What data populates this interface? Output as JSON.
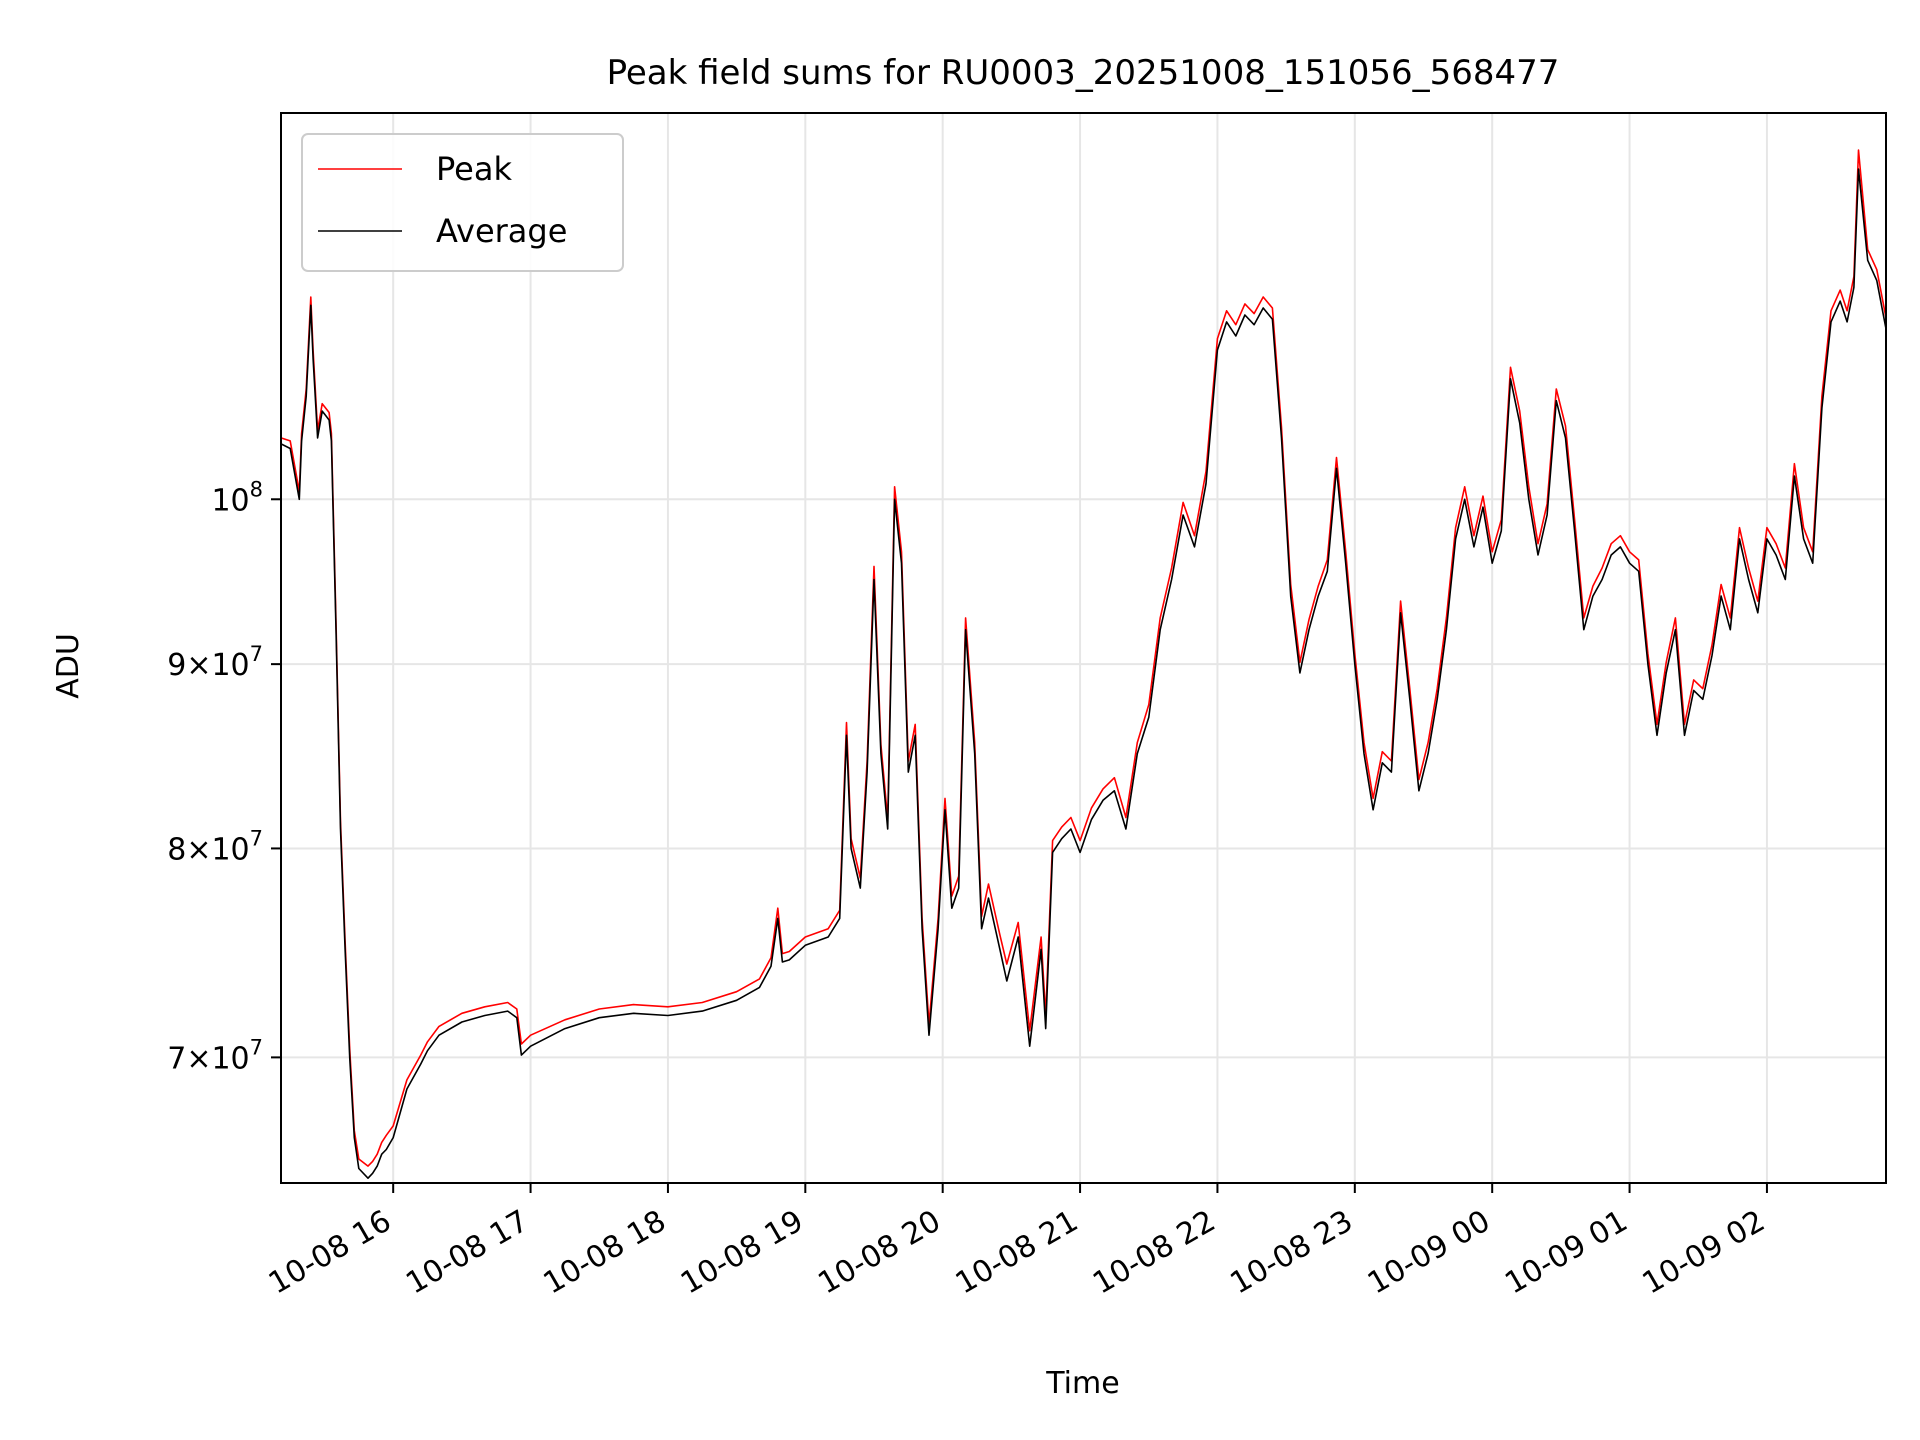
{
  "chart_data": {
    "type": "line",
    "title": "Peak field sums for RU0003_20251008_151056_568477",
    "xlabel": "Time",
    "ylabel": "ADU",
    "yscale": "log",
    "xlim": [
      "2025-10-08 15:11",
      "2025-10-09 02:52"
    ],
    "ylim": [
      64600000,
      128000000
    ],
    "grid": true,
    "legend": "top-left",
    "x_ticks": [
      {
        "label": "10-08 16",
        "value": "2025-10-08 16:00"
      },
      {
        "label": "10-08 17",
        "value": "2025-10-08 17:00"
      },
      {
        "label": "10-08 18",
        "value": "2025-10-08 18:00"
      },
      {
        "label": "10-08 19",
        "value": "2025-10-08 19:00"
      },
      {
        "label": "10-08 20",
        "value": "2025-10-08 20:00"
      },
      {
        "label": "10-08 21",
        "value": "2025-10-08 21:00"
      },
      {
        "label": "10-08 22",
        "value": "2025-10-08 22:00"
      },
      {
        "label": "10-08 23",
        "value": "2025-10-08 23:00"
      },
      {
        "label": "10-09 00",
        "value": "2025-10-09 00:00"
      },
      {
        "label": "10-09 01",
        "value": "2025-10-09 01:00"
      },
      {
        "label": "10-09 02",
        "value": "2025-10-09 02:00"
      }
    ],
    "y_ticks": [
      {
        "mantissa": "7",
        "exp": "7",
        "value": 70000000
      },
      {
        "mantissa": "8",
        "exp": "7",
        "value": 80000000
      },
      {
        "mantissa": "9",
        "exp": "7",
        "value": 90000000
      },
      {
        "mantissa": "",
        "exp": "8",
        "value": 100000000
      }
    ],
    "series": [
      {
        "name": "Peak",
        "color": "#ff0000"
      },
      {
        "name": "Average",
        "color": "#000000"
      }
    ],
    "x": [
      "2025-10-08 15:11",
      "2025-10-08 15:15",
      "2025-10-08 15:19",
      "2025-10-08 15:20",
      "2025-10-08 15:22",
      "2025-10-08 15:24",
      "2025-10-08 15:25",
      "2025-10-08 15:27",
      "2025-10-08 15:29",
      "2025-10-08 15:30",
      "2025-10-08 15:32",
      "2025-10-08 15:33",
      "2025-10-08 15:35",
      "2025-10-08 15:37",
      "2025-10-08 15:39",
      "2025-10-08 15:41",
      "2025-10-08 15:43",
      "2025-10-08 15:45",
      "2025-10-08 15:49",
      "2025-10-08 15:51",
      "2025-10-08 15:53",
      "2025-10-08 15:55",
      "2025-10-08 15:57",
      "2025-10-08 16:00",
      "2025-10-08 16:06",
      "2025-10-08 16:12",
      "2025-10-08 16:15",
      "2025-10-08 16:20",
      "2025-10-08 16:30",
      "2025-10-08 16:40",
      "2025-10-08 16:50",
      "2025-10-08 16:54",
      "2025-10-08 16:56",
      "2025-10-08 17:00",
      "2025-10-08 17:15",
      "2025-10-08 17:30",
      "2025-10-08 17:45",
      "2025-10-08 18:00",
      "2025-10-08 18:15",
      "2025-10-08 18:30",
      "2025-10-08 18:40",
      "2025-10-08 18:45",
      "2025-10-08 18:48",
      "2025-10-08 18:50",
      "2025-10-08 18:53",
      "2025-10-08 19:00",
      "2025-10-08 19:10",
      "2025-10-08 19:15",
      "2025-10-08 19:18",
      "2025-10-08 19:20",
      "2025-10-08 19:24",
      "2025-10-08 19:27",
      "2025-10-08 19:30",
      "2025-10-08 19:33",
      "2025-10-08 19:36",
      "2025-10-08 19:39",
      "2025-10-08 19:42",
      "2025-10-08 19:45",
      "2025-10-08 19:48",
      "2025-10-08 19:51",
      "2025-10-08 19:54",
      "2025-10-08 19:58",
      "2025-10-08 20:01",
      "2025-10-08 20:04",
      "2025-10-08 20:07",
      "2025-10-08 20:10",
      "2025-10-08 20:14",
      "2025-10-08 20:17",
      "2025-10-08 20:20",
      "2025-10-08 20:25",
      "2025-10-08 20:28",
      "2025-10-08 20:33",
      "2025-10-08 20:38",
      "2025-10-08 20:43",
      "2025-10-08 20:45",
      "2025-10-08 20:48",
      "2025-10-08 20:52",
      "2025-10-08 20:56",
      "2025-10-08 21:00",
      "2025-10-08 21:05",
      "2025-10-08 21:10",
      "2025-10-08 21:15",
      "2025-10-08 21:20",
      "2025-10-08 21:25",
      "2025-10-08 21:30",
      "2025-10-08 21:35",
      "2025-10-08 21:40",
      "2025-10-08 21:45",
      "2025-10-08 21:50",
      "2025-10-08 21:55",
      "2025-10-08 22:00",
      "2025-10-08 22:04",
      "2025-10-08 22:08",
      "2025-10-08 22:12",
      "2025-10-08 22:16",
      "2025-10-08 22:20",
      "2025-10-08 22:24",
      "2025-10-08 22:28",
      "2025-10-08 22:32",
      "2025-10-08 22:36",
      "2025-10-08 22:40",
      "2025-10-08 22:44",
      "2025-10-08 22:48",
      "2025-10-08 22:52",
      "2025-10-08 22:56",
      "2025-10-08 23:00",
      "2025-10-08 23:04",
      "2025-10-08 23:08",
      "2025-10-08 23:12",
      "2025-10-08 23:16",
      "2025-10-08 23:20",
      "2025-10-08 23:24",
      "2025-10-08 23:28",
      "2025-10-08 23:32",
      "2025-10-08 23:36",
      "2025-10-08 23:40",
      "2025-10-08 23:44",
      "2025-10-08 23:48",
      "2025-10-08 23:52",
      "2025-10-08 23:56",
      "2025-10-09 00:00",
      "2025-10-09 00:04",
      "2025-10-09 00:08",
      "2025-10-09 00:12",
      "2025-10-09 00:16",
      "2025-10-09 00:20",
      "2025-10-09 00:24",
      "2025-10-09 00:28",
      "2025-10-09 00:32",
      "2025-10-09 00:36",
      "2025-10-09 00:40",
      "2025-10-09 00:44",
      "2025-10-09 00:48",
      "2025-10-09 00:52",
      "2025-10-09 00:56",
      "2025-10-09 01:00",
      "2025-10-09 01:04",
      "2025-10-09 01:08",
      "2025-10-09 01:12",
      "2025-10-09 01:16",
      "2025-10-09 01:20",
      "2025-10-09 01:24",
      "2025-10-09 01:28",
      "2025-10-09 01:32",
      "2025-10-09 01:36",
      "2025-10-09 01:40",
      "2025-10-09 01:44",
      "2025-10-09 01:48",
      "2025-10-09 01:52",
      "2025-10-09 01:56",
      "2025-10-09 02:00",
      "2025-10-09 02:04",
      "2025-10-09 02:08",
      "2025-10-09 02:12",
      "2025-10-09 02:16",
      "2025-10-09 02:20",
      "2025-10-09 02:24",
      "2025-10-09 02:28",
      "2025-10-09 02:32",
      "2025-10-09 02:35",
      "2025-10-09 02:38",
      "2025-10-09 02:40",
      "2025-10-09 02:44",
      "2025-10-09 02:48",
      "2025-10-09 02:52"
    ],
    "average": [
      103600000,
      103300000,
      100000000,
      103800000,
      106800000,
      113200000,
      109400000,
      104000000,
      105800000,
      105600000,
      105200000,
      103800000,
      92000000,
      81000000,
      75000000,
      70000000,
      66500000,
      65200000,
      64800000,
      65000000,
      65300000,
      65800000,
      66000000,
      66500000,
      68600000,
      69700000,
      70300000,
      71000000,
      71600000,
      71900000,
      72100000,
      71800000,
      70100000,
      70500000,
      71300000,
      71800000,
      72000000,
      71900000,
      72100000,
      72600000,
      73200000,
      74200000,
      76500000,
      74400000,
      74500000,
      75200000,
      75600000,
      76500000,
      86000000,
      80000000,
      78000000,
      84000000,
      95000000,
      85000000,
      81000000,
      100000000,
      96000000,
      84000000,
      86000000,
      76000000,
      71000000,
      76000000,
      82000000,
      77000000,
      78000000,
      92000000,
      85000000,
      76000000,
      77500000,
      75000000,
      73500000,
      75600000,
      70500000,
      75000000,
      71300000,
      79800000,
      80500000,
      81000000,
      79800000,
      81500000,
      82500000,
      83000000,
      81000000,
      85000000,
      87000000,
      92000000,
      95000000,
      99000000,
      97000000,
      101000000,
      110000000,
      112000000,
      111000000,
      112500000,
      111800000,
      113000000,
      112200000,
      104000000,
      94000000,
      89500000,
      92000000,
      94000000,
      95500000,
      102000000,
      96000000,
      90000000,
      85000000,
      82000000,
      84500000,
      84000000,
      93000000,
      88000000,
      83000000,
      85000000,
      88000000,
      92000000,
      97500000,
      100000000,
      97000000,
      99500000,
      96000000,
      98000000,
      108000000,
      105000000,
      100000000,
      96500000,
      99000000,
      106500000,
      104000000,
      98000000,
      92000000,
      94000000,
      95000000,
      96500000,
      97000000,
      96000000,
      95500000,
      90000000,
      86000000,
      89500000,
      92000000,
      86000000,
      88500000,
      88000000,
      90500000,
      94000000,
      92000000,
      97500000,
      95000000,
      93000000,
      97500000,
      96500000,
      95000000,
      101500000,
      97500000,
      96000000,
      106000000,
      112000000,
      113500000,
      112000000,
      114500000,
      123500000,
      116500000,
      115000000,
      111500000
    ],
    "peak": [
      104000000,
      103800000,
      100500000,
      104300000,
      107300000,
      113800000,
      110000000,
      104500000,
      106300000,
      106100000,
      105700000,
      104300000,
      92500000,
      81400000,
      75400000,
      70400000,
      66800000,
      65600000,
      65300000,
      65500000,
      65800000,
      66300000,
      66600000,
      67000000,
      69000000,
      70100000,
      70700000,
      71400000,
      72000000,
      72300000,
      72500000,
      72200000,
      70600000,
      71000000,
      71700000,
      72200000,
      72400000,
      72300000,
      72500000,
      73000000,
      73600000,
      74600000,
      77000000,
      74800000,
      74900000,
      75600000,
      76000000,
      76900000,
      86700000,
      80500000,
      78500000,
      84600000,
      95800000,
      85500000,
      81500000,
      100800000,
      96700000,
      84600000,
      86600000,
      76500000,
      71500000,
      76500000,
      82600000,
      77600000,
      78600000,
      92700000,
      85600000,
      76600000,
      78200000,
      75700000,
      74300000,
      76300000,
      71200000,
      75600000,
      71900000,
      80400000,
      81100000,
      81600000,
      80400000,
      82100000,
      83100000,
      83700000,
      81600000,
      85600000,
      87700000,
      92700000,
      95700000,
      99800000,
      97700000,
      101800000,
      110800000,
      112800000,
      111800000,
      113300000,
      112600000,
      113800000,
      113000000,
      104700000,
      94700000,
      90100000,
      92600000,
      94600000,
      96200000,
      102700000,
      96700000,
      90600000,
      85600000,
      82600000,
      85100000,
      84600000,
      93700000,
      88600000,
      83600000,
      85600000,
      88600000,
      92700000,
      98200000,
      100800000,
      97700000,
      100200000,
      96700000,
      98700000,
      108800000,
      105800000,
      100800000,
      97200000,
      99700000,
      107300000,
      104800000,
      98700000,
      92700000,
      94600000,
      95700000,
      97200000,
      97700000,
      96700000,
      96200000,
      90600000,
      86600000,
      90100000,
      92700000,
      86600000,
      89100000,
      88600000,
      91100000,
      94700000,
      92700000,
      98200000,
      95700000,
      93700000,
      98200000,
      97200000,
      95700000,
      102300000,
      98200000,
      96700000,
      106800000,
      112800000,
      114300000,
      112800000,
      115300000,
      125000000,
      117300000,
      115800000,
      112300000
    ]
  }
}
